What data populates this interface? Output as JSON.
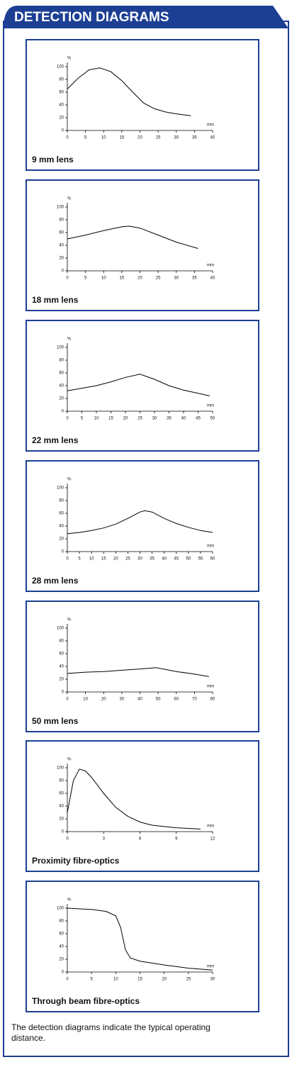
{
  "header": {
    "title": "DETECTION DIAGRAMS"
  },
  "note": "The detection diagrams indicate the typical operating distance.",
  "chart_data": [
    {
      "type": "line",
      "title": "9 mm lens",
      "y_label": "%",
      "x_label": "mm",
      "x": [
        0,
        3,
        6,
        9,
        12,
        15,
        18,
        21,
        24,
        27,
        30,
        34
      ],
      "values": [
        65,
        82,
        95,
        98,
        92,
        78,
        60,
        43,
        34,
        29,
        26,
        23
      ],
      "xlim": [
        0,
        40
      ],
      "xticks": [
        0,
        5,
        10,
        15,
        20,
        25,
        30,
        35,
        40
      ],
      "ylim": [
        0,
        100
      ],
      "yticks": [
        0,
        20,
        40,
        60,
        80,
        100
      ],
      "color": "#000000"
    },
    {
      "type": "line",
      "title": "18 mm lens",
      "y_label": "%",
      "x_label": "mm",
      "x": [
        0,
        5,
        10,
        15,
        17,
        20,
        25,
        30,
        36
      ],
      "values": [
        50,
        56,
        63,
        69,
        70,
        67,
        56,
        45,
        35
      ],
      "xlim": [
        0,
        40
      ],
      "xticks": [
        0,
        5,
        10,
        15,
        20,
        25,
        30,
        35,
        40
      ],
      "ylim": [
        0,
        100
      ],
      "yticks": [
        0,
        20,
        40,
        60,
        80,
        100
      ],
      "color": "#000000"
    },
    {
      "type": "line",
      "title": "22 mm lens",
      "y_label": "%",
      "x_label": "mm",
      "x": [
        0,
        5,
        10,
        15,
        20,
        25,
        30,
        35,
        40,
        45,
        49
      ],
      "values": [
        32,
        36,
        40,
        46,
        53,
        58,
        50,
        40,
        33,
        28,
        24
      ],
      "xlim": [
        0,
        50
      ],
      "xticks": [
        0,
        5,
        10,
        15,
        20,
        25,
        30,
        35,
        40,
        45,
        50
      ],
      "ylim": [
        0,
        100
      ],
      "yticks": [
        0,
        20,
        40,
        60,
        80,
        100
      ],
      "color": "#000000"
    },
    {
      "type": "line",
      "title": "28 mm lens",
      "y_label": "%",
      "x_label": "mm",
      "x": [
        0,
        5,
        10,
        15,
        20,
        25,
        30,
        32,
        35,
        40,
        45,
        50,
        55,
        60
      ],
      "values": [
        28,
        30,
        33,
        37,
        43,
        52,
        62,
        64,
        62,
        52,
        44,
        38,
        33,
        30
      ],
      "xlim": [
        0,
        60
      ],
      "xticks": [
        0,
        5,
        10,
        15,
        20,
        25,
        30,
        35,
        40,
        45,
        50,
        55,
        60
      ],
      "ylim": [
        0,
        100
      ],
      "yticks": [
        0,
        20,
        40,
        60,
        80,
        100
      ],
      "color": "#000000"
    },
    {
      "type": "line",
      "title": "50 mm lens",
      "y_label": "%",
      "x_label": "mm",
      "x": [
        0,
        10,
        20,
        30,
        40,
        49,
        60,
        70,
        78
      ],
      "values": [
        29,
        31,
        32,
        34,
        36,
        38,
        32,
        28,
        24
      ],
      "xlim": [
        0,
        80
      ],
      "xticks": [
        0,
        10,
        20,
        30,
        40,
        50,
        60,
        70,
        80
      ],
      "ylim": [
        0,
        100
      ],
      "yticks": [
        0,
        20,
        40,
        60,
        80,
        100
      ],
      "color": "#000000"
    },
    {
      "type": "line",
      "title": "Proximity fibre-optics",
      "y_label": "%",
      "x_label": "mm",
      "x": [
        0,
        0.5,
        1,
        1.5,
        2,
        3,
        4,
        5,
        6,
        7,
        8,
        9,
        10,
        11
      ],
      "values": [
        30,
        80,
        98,
        95,
        85,
        60,
        38,
        24,
        15,
        10,
        8,
        6,
        5,
        4
      ],
      "xlim": [
        0,
        12
      ],
      "xticks": [
        0,
        3,
        6,
        9,
        12
      ],
      "ylim": [
        0,
        100
      ],
      "yticks": [
        0,
        20,
        40,
        60,
        80,
        100
      ],
      "color": "#000000"
    },
    {
      "type": "line",
      "title": "Through beam fibre-optics",
      "y_label": "%",
      "x_label": "mm",
      "x": [
        0,
        5,
        8,
        10,
        11,
        12,
        13,
        15,
        20,
        25,
        30
      ],
      "values": [
        100,
        98,
        95,
        88,
        70,
        35,
        22,
        17,
        11,
        6,
        3
      ],
      "xlim": [
        0,
        30
      ],
      "xticks": [
        0,
        5,
        10,
        15,
        20,
        25,
        30
      ],
      "ylim": [
        0,
        100
      ],
      "yticks": [
        0,
        20,
        40,
        60,
        80,
        100
      ],
      "color": "#000000"
    }
  ]
}
